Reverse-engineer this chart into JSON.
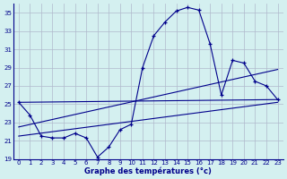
{
  "xlabel": "Graphe des températures (°c)",
  "bg_color": "#d4f0f0",
  "grid_color": "#b0b8cc",
  "line_color": "#00008b",
  "ylim": [
    19,
    36
  ],
  "xlim": [
    -0.5,
    23.5
  ],
  "yticks": [
    19,
    21,
    23,
    25,
    27,
    29,
    31,
    33,
    35
  ],
  "xticks": [
    0,
    1,
    2,
    3,
    4,
    5,
    6,
    7,
    8,
    9,
    10,
    11,
    12,
    13,
    14,
    15,
    16,
    17,
    18,
    19,
    20,
    21,
    22,
    23
  ],
  "main_series": {
    "x": [
      0,
      1,
      2,
      3,
      4,
      5,
      6,
      7,
      8,
      9,
      10,
      11,
      12,
      13,
      14,
      15,
      16,
      17,
      18,
      19,
      20,
      21,
      22,
      23
    ],
    "y": [
      25.2,
      23.8,
      21.5,
      21.3,
      21.3,
      21.8,
      21.3,
      19.2,
      20.3,
      22.2,
      22.8,
      29.0,
      32.5,
      34.0,
      35.2,
      35.6,
      35.3,
      31.6,
      26.0,
      29.8,
      29.5,
      27.5,
      27.0,
      25.5
    ]
  },
  "diag_lines": [
    {
      "x": [
        0,
        23
      ],
      "y": [
        25.2,
        25.5
      ]
    },
    {
      "x": [
        0,
        23
      ],
      "y": [
        22.5,
        28.8
      ]
    },
    {
      "x": [
        0,
        23
      ],
      "y": [
        21.5,
        25.2
      ]
    }
  ]
}
